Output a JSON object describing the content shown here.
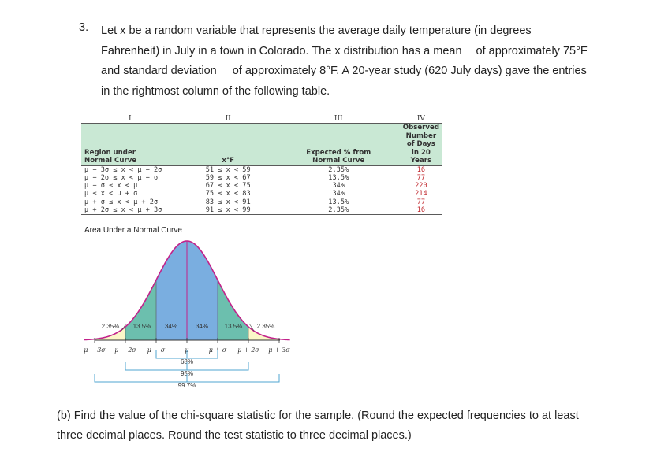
{
  "question": {
    "number": "3.",
    "lines": [
      "Let x be a random variable that represents the average daily temperature (in degrees",
      "Fahrenheit) in July in a town in Colorado. The x distribution has a mean",
      "of approximately 75°F",
      "and standard deviation",
      "of approximately 8°F. A 20-year study (620 July days) gave the entries",
      "in the rightmost column of the following table."
    ]
  },
  "table": {
    "roman": [
      "I",
      "II",
      "III",
      "IV"
    ],
    "headers": {
      "c1": [
        "Region under",
        "Normal Curve"
      ],
      "c2": [
        "x°F"
      ],
      "c3": [
        "Expected % from",
        "Normal Curve"
      ],
      "c4": [
        "Observed",
        "Number of Days",
        "in 20 Years"
      ]
    },
    "rows": [
      {
        "region": "μ − 3σ ≤ x < μ − 2σ",
        "range": "51 ≤ x < 59",
        "expected": "2.35%",
        "observed": "16"
      },
      {
        "region": "μ − 2σ ≤ x < μ − σ",
        "range": "59 ≤ x < 67",
        "expected": "13.5%",
        "observed": "77"
      },
      {
        "region": "μ − σ ≤ x < μ",
        "range": "67 ≤ x < 75",
        "expected": "34%",
        "observed": "220"
      },
      {
        "region": "μ ≤ x < μ + σ",
        "range": "75 ≤ x < 83",
        "expected": "34%",
        "observed": "214"
      },
      {
        "region": "μ + σ ≤ x < μ + 2σ",
        "range": "83 ≤ x < 91",
        "expected": "13.5%",
        "observed": "77"
      },
      {
        "region": "μ + 2σ ≤ x < μ + 3σ",
        "range": "91 ≤ x < 99",
        "expected": "2.35%",
        "observed": "16"
      }
    ]
  },
  "figure": {
    "title": "Area Under a Normal Curve",
    "region_labels": [
      "2.35%",
      "13.5%",
      "34%",
      "34%",
      "13.5%",
      "2.35%"
    ],
    "axis_labels": [
      "μ − 3σ",
      "μ − 2σ",
      "μ − σ",
      "μ",
      "μ + σ",
      "μ + 2σ",
      "μ + 3σ"
    ],
    "span_labels": [
      "68%",
      "95%",
      "99.7%"
    ],
    "colors": {
      "tail": "#fbf7c8",
      "outer": "#6cbfae",
      "inner": "#7aaee0",
      "curve": "#c2228a",
      "bracket": "#4fa5d1"
    }
  },
  "part_b": {
    "lines": [
      "(b) Find the value of the chi-square statistic for the sample. (Round the expected frequencies to at least",
      "three decimal places. Round the test statistic to three decimal places.)"
    ]
  }
}
